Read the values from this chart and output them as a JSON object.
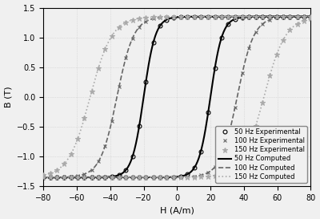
{
  "xlabel": "H (A/m)",
  "ylabel": "B (T)",
  "xlim": [
    -80,
    80
  ],
  "ylim": [
    -1.5,
    1.5
  ],
  "xticks": [
    -80,
    -60,
    -40,
    -20,
    0,
    20,
    40,
    60,
    80
  ],
  "yticks": [
    -1.5,
    -1,
    -0.5,
    0,
    0.5,
    1,
    1.5
  ],
  "B_sat": 1.35,
  "freq_params": [
    {
      "Hc": 20,
      "k": 7.0,
      "color": "#000000",
      "ls": "-",
      "lw": 1.5,
      "marker": "o",
      "ms": 3.5,
      "label_exp": "50 Hz Experimental",
      "label_comp": "50 Hz Computed"
    },
    {
      "Hc": 36,
      "k": 10.0,
      "color": "#666666",
      "ls": "--",
      "lw": 1.2,
      "marker": "x",
      "ms": 3.5,
      "label_exp": "100 Hz Experimental",
      "label_comp": "100 Hz Computed"
    },
    {
      "Hc": 52,
      "k": 13.0,
      "color": "#aaaaaa",
      "ls": ":",
      "lw": 1.2,
      "marker": "*",
      "ms": 4.5,
      "label_exp": "150 Hz Experimental",
      "label_comp": "150 Hz Computed"
    }
  ],
  "n_curve_pts": 400,
  "n_markers": 40,
  "grid_color": "#cccccc",
  "grid_ls": ":",
  "grid_lw": 0.5,
  "bg_color": "#f0f0f0",
  "legend_fontsize": 6,
  "axis_fontsize": 8,
  "tick_fontsize": 7
}
